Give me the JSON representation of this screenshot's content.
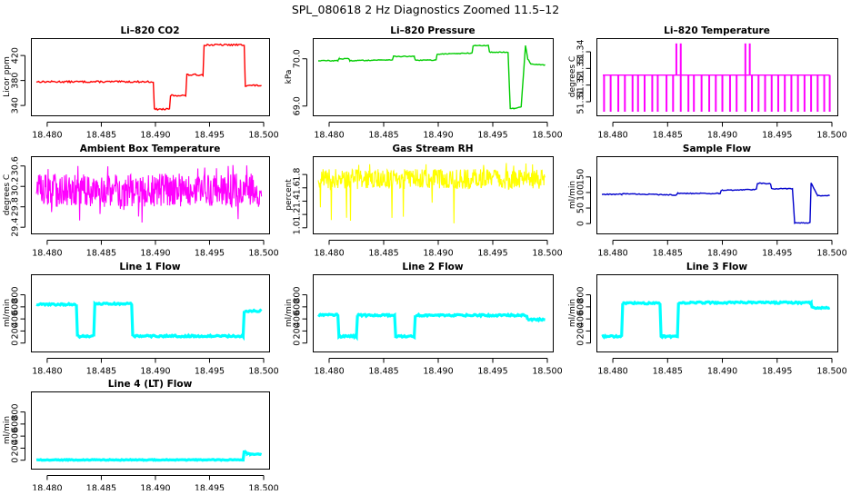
{
  "page_title": "SPL_080618  2 Hz Diagnostics Zoomed 11.5–12",
  "x_axis": {
    "range": [
      18.479,
      18.5
    ],
    "ticks": [
      18.48,
      18.485,
      18.49,
      18.495,
      18.5
    ],
    "tick_labels": [
      "18.480",
      "18.485",
      "18.490",
      "18.495",
      "18.500"
    ]
  },
  "chart_data": [
    {
      "id": "co2",
      "type": "line",
      "title": "Li–820 CO2",
      "ylabel": "Licor ppm",
      "color": "#ff0000",
      "ylim": [
        330,
        442
      ],
      "yticks": [
        340,
        380,
        420
      ],
      "ytick_labels": [
        "340",
        "380",
        "420"
      ],
      "series": [
        {
          "name": "CO2",
          "style": "step",
          "x": [
            18.479,
            18.4898,
            18.4899,
            18.4913,
            18.4914,
            18.4928,
            18.4929,
            18.4944,
            18.4945,
            18.4982,
            18.4983,
            18.4998
          ],
          "y": [
            378,
            378,
            334,
            334,
            356,
            356,
            389,
            389,
            437,
            437,
            372,
            372
          ]
        }
      ]
    },
    {
      "id": "pressure",
      "type": "line",
      "title": "Li–820 Pressure",
      "ylabel": "kPa",
      "color": "#00cc00",
      "ylim": [
        68.88,
        70.36
      ],
      "yticks": [
        69.0,
        70.0
      ],
      "ytick_labels": [
        "69.0",
        "70.0"
      ],
      "series": [
        {
          "name": "Pressure",
          "style": "line",
          "x": [
            18.479,
            18.4808,
            18.4809,
            18.4818,
            18.4819,
            18.4858,
            18.4859,
            18.4878,
            18.4879,
            18.4898,
            18.4899,
            18.4931,
            18.4932,
            18.4946,
            18.4947,
            18.4964,
            18.4966,
            18.4969,
            18.4976,
            18.498,
            18.4982,
            18.4985,
            18.4998
          ],
          "y": [
            69.96,
            69.96,
            70.0,
            70.0,
            69.96,
            69.98,
            70.05,
            70.05,
            69.97,
            69.97,
            70.1,
            70.12,
            70.28,
            70.28,
            70.14,
            70.14,
            68.95,
            68.95,
            68.98,
            70.28,
            70.0,
            69.89,
            69.87
          ]
        }
      ]
    },
    {
      "id": "temperature",
      "type": "line",
      "title": "Li–820 Temperature",
      "ylabel": "degrees C",
      "color": "#ff00ff",
      "ylim": [
        51.304,
        51.346
      ],
      "yticks": [
        51.31,
        51.32,
        51.33,
        51.34
      ],
      "ytick_labels": [
        "51.31",
        "51.32",
        "51.33",
        "51.34"
      ],
      "series": [
        {
          "name": "Temperature",
          "style": "spikes",
          "base": 51.326,
          "low": 51.304,
          "high": 51.345,
          "down_x": [
            18.4792,
            18.4798,
            18.4805,
            18.4811,
            18.4818,
            18.4823,
            18.4829,
            18.4836,
            18.4841,
            18.4849,
            18.4855,
            18.4862,
            18.4869,
            18.4874,
            18.4881,
            18.4888,
            18.4894,
            18.49,
            18.4907,
            18.4913,
            18.4921,
            18.4927,
            18.4933,
            18.4939,
            18.4945,
            18.4951,
            18.4957,
            18.4963,
            18.4969,
            18.4975,
            18.4981,
            18.4987,
            18.4993,
            18.4998
          ],
          "up_x": [
            18.4858,
            18.4862,
            18.4921,
            18.4925
          ]
        }
      ]
    },
    {
      "id": "box_temp",
      "type": "line",
      "title": "Ambient Box Temperature",
      "ylabel": "degrees C",
      "color": "#ff00ff",
      "ylim": [
        29.35,
        30.72
      ],
      "yticks": [
        29.4,
        29.8,
        30.2,
        30.6
      ],
      "ytick_labels": [
        "29.4",
        "29.8",
        "30.2",
        "30.6"
      ],
      "series": [
        {
          "name": "Box Temperature",
          "style": "noise",
          "base": 30.1,
          "low": 29.8,
          "high": 30.45,
          "min": 29.45,
          "max": 30.62
        }
      ]
    },
    {
      "id": "rh",
      "type": "line",
      "title": "Gas Stream RH",
      "ylabel": "percent",
      "color": "#ffff00",
      "ylim": [
        0.97,
        2.02
      ],
      "yticks": [
        1.0,
        1.2,
        1.4,
        1.6,
        1.8
      ],
      "ytick_labels": [
        "1.0",
        "1.2",
        "1.4",
        "1.6",
        "1.8"
      ],
      "series": [
        {
          "name": "RH",
          "style": "noise",
          "base": 1.72,
          "low": 1.58,
          "high": 1.88,
          "min": 1.05,
          "max": 1.98
        }
      ]
    },
    {
      "id": "sample_flow",
      "type": "line",
      "title": "Sample Flow",
      "ylabel": "ml/min",
      "color": "#0000cc",
      "ylim": [
        -20,
        205
      ],
      "yticks": [
        0,
        50,
        100,
        150
      ],
      "ytick_labels": [
        "0",
        "50",
        "100",
        "150"
      ],
      "series": [
        {
          "name": "Sample Flow",
          "style": "line",
          "x": [
            18.479,
            18.4808,
            18.4809,
            18.4858,
            18.4859,
            18.4898,
            18.4899,
            18.4931,
            18.4932,
            18.4944,
            18.4945,
            18.4964,
            18.4966,
            18.498,
            18.4981,
            18.4984,
            18.4987,
            18.4998
          ],
          "y": [
            94,
            94,
            96,
            92,
            97,
            97,
            107,
            110,
            130,
            128,
            112,
            112,
            2,
            2,
            130,
            110,
            90,
            90
          ]
        }
      ]
    },
    {
      "id": "line1",
      "type": "line",
      "title": "Line 1 Flow",
      "ylabel": "ml/min",
      "color": "#00ffff",
      "ylim": [
        -80,
        1080
      ],
      "yticks": [
        0,
        200,
        400,
        600,
        800
      ],
      "ytick_labels": [
        "0",
        "200",
        "400",
        "600",
        "800"
      ],
      "series": [
        {
          "name": "Line 1",
          "style": "step",
          "x": [
            18.479,
            18.4827,
            18.4828,
            18.4843,
            18.4844,
            18.4878,
            18.4879,
            18.4981,
            18.4982,
            18.4998
          ],
          "y": [
            640,
            640,
            110,
            110,
            650,
            650,
            115,
            115,
            530,
            530
          ]
        }
      ]
    },
    {
      "id": "line2",
      "type": "line",
      "title": "Line 2 Flow",
      "ylabel": "ml/min",
      "color": "#00ffff",
      "ylim": [
        -80,
        1080
      ],
      "yticks": [
        0,
        200,
        400,
        600,
        800
      ],
      "ytick_labels": [
        "0",
        "200",
        "400",
        "600",
        "800"
      ],
      "series": [
        {
          "name": "Line 2",
          "style": "step",
          "x": [
            18.479,
            18.4808,
            18.4809,
            18.4825,
            18.4826,
            18.486,
            18.4861,
            18.4878,
            18.4879,
            18.4981,
            18.4982,
            18.4998
          ],
          "y": [
            470,
            470,
            110,
            110,
            460,
            460,
            110,
            110,
            460,
            460,
            390,
            390
          ]
        }
      ]
    },
    {
      "id": "line3",
      "type": "line",
      "title": "Line 3 Flow",
      "ylabel": "ml/min",
      "color": "#00ffff",
      "ylim": [
        -80,
        1080
      ],
      "yticks": [
        0,
        200,
        400,
        600,
        800
      ],
      "ytick_labels": [
        "0",
        "200",
        "400",
        "600",
        "800"
      ],
      "series": [
        {
          "name": "Line 3",
          "style": "step",
          "x": [
            18.479,
            18.4808,
            18.4809,
            18.4843,
            18.4844,
            18.4859,
            18.486,
            18.4981,
            18.4982,
            18.4998
          ],
          "y": [
            110,
            110,
            660,
            660,
            110,
            110,
            670,
            670,
            580,
            580
          ]
        }
      ]
    },
    {
      "id": "line4",
      "type": "line",
      "title": "Line 4 (LT) Flow",
      "ylabel": "ml/min",
      "color": "#00ffff",
      "ylim": [
        -80,
        1080
      ],
      "yticks": [
        0,
        200,
        400,
        600,
        800
      ],
      "ytick_labels": [
        "0",
        "200",
        "400",
        "600",
        "800"
      ],
      "series": [
        {
          "name": "Line 4",
          "style": "line",
          "x": [
            18.479,
            18.4981,
            18.4982,
            18.4985,
            18.4988,
            18.4998
          ],
          "y": [
            5,
            5,
            160,
            110,
            100,
            100
          ]
        }
      ]
    }
  ]
}
